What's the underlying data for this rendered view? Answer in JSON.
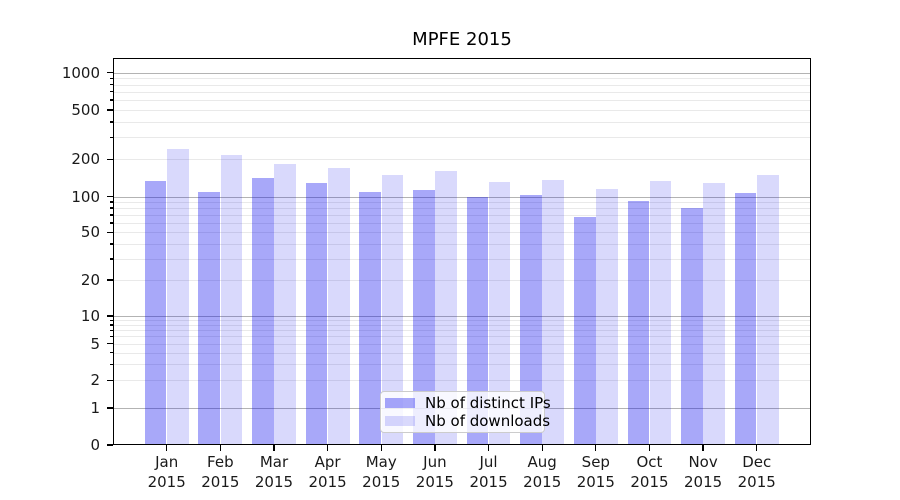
{
  "chart_data": {
    "type": "bar",
    "title": "MPFE 2015",
    "categories": [
      "Jan",
      "Feb",
      "Mar",
      "Apr",
      "May",
      "Jun",
      "Jul",
      "Aug",
      "Sep",
      "Oct",
      "Nov",
      "Dec"
    ],
    "year_label": "2015",
    "series": [
      {
        "name": "Nb of distinct IPs",
        "color": "rgba(0,0,238,0.34)",
        "values": [
          134,
          108,
          141,
          128,
          109,
          112,
          100,
          102,
          67,
          92,
          80,
          106
        ]
      },
      {
        "name": "Nb of downloads",
        "color": "rgba(0,0,238,0.15)",
        "values": [
          240,
          218,
          184,
          169,
          150,
          162,
          130,
          136,
          115,
          133,
          129,
          150
        ]
      }
    ],
    "yscale": "symlog",
    "yticks": [
      0,
      1,
      2,
      5,
      10,
      20,
      50,
      100,
      200,
      500,
      1000
    ],
    "ylim": [
      0,
      1280
    ],
    "xlabel": "",
    "ylabel": "",
    "grid": true,
    "legend_position": "lower center",
    "colors": {
      "major_grid": "#b3b3b3",
      "minor_grid": "#e9e9e9",
      "spine": "#000000",
      "text": "#1a1a1a"
    }
  }
}
